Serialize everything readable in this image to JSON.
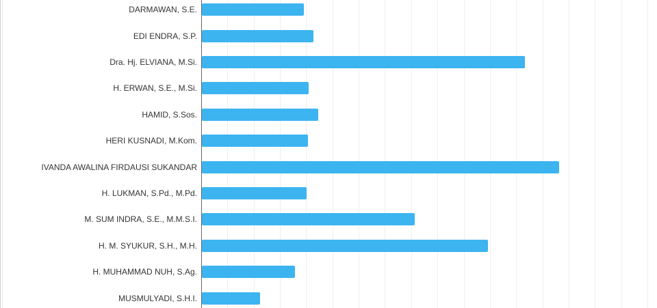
{
  "chart_data": {
    "type": "bar",
    "orientation": "horizontal",
    "title": "",
    "xlabel": "",
    "ylabel": "",
    "grid": true,
    "legend": false,
    "categories": [
      "DARMAWAN, S.E.",
      "EDI ENDRA, S.P.",
      "Dra. Hj. ELVIANA, M.Si.",
      "H. ERWAN, S.E., M.Si.",
      "HAMID, S.Sos.",
      "HERI KUSNADI, M.Kom.",
      "IVANDA AWALINA FIRDAUSI SUKANDAR",
      "H. LUKMAN, S.Pd., M.Pd.",
      "M. SUM INDRA, S.E., M.M.S.I.",
      "H. M. SYUKUR, S.H., M.H.",
      "H. MUHAMMAD NUH, S.Ag.",
      "MUSMULYADI, S.H.I."
    ],
    "values_gridline_units": [
      3.89,
      4.26,
      12.31,
      4.07,
      4.43,
      4.05,
      13.61,
      4.0,
      8.11,
      10.9,
      3.54,
      2.22
    ],
    "xlim": [
      0,
      17.4
    ],
    "x_tick_labels_visible": false,
    "colors": {
      "bar": "#3cb4f0",
      "gridline": "#efefef",
      "axis_line": "#666666",
      "label_text": "#333333",
      "background": "#ffffff"
    }
  }
}
